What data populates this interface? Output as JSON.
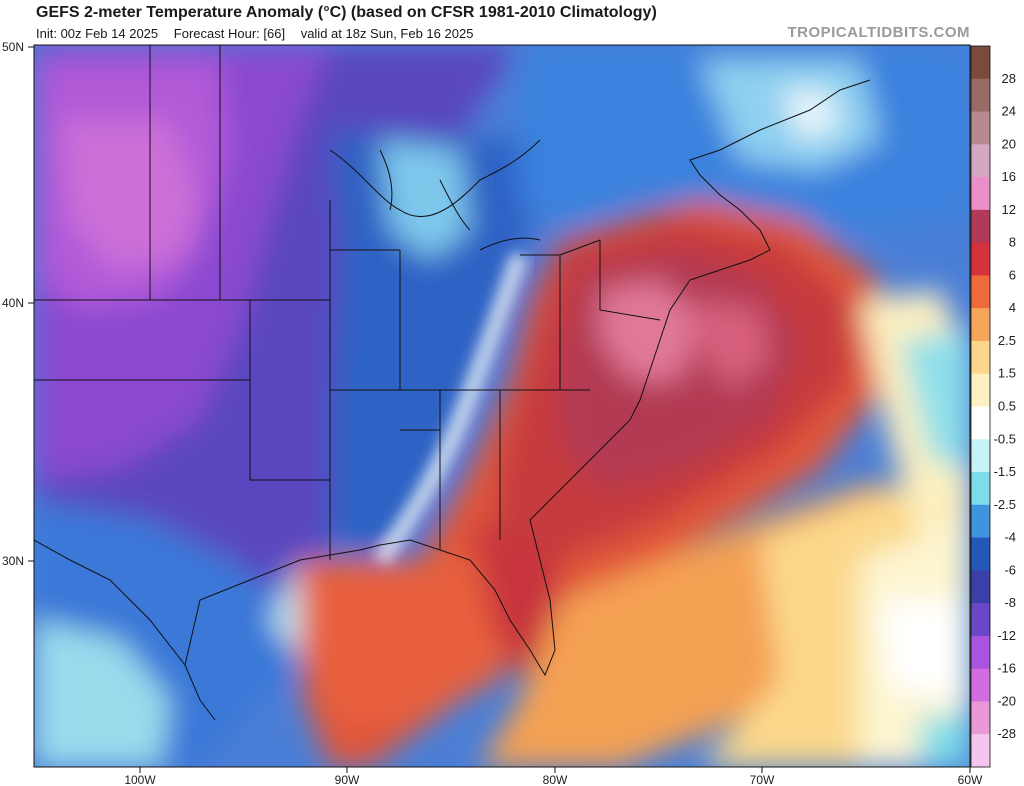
{
  "header": {
    "title": "GEFS 2-meter Temperature Anomaly (°C) (based on CFSR 1981-2010 Climatology)",
    "init": "Init: 00z Feb 14 2025",
    "forecast_hour": "Forecast Hour: [66]",
    "valid": "valid at 18z Sun, Feb 16 2025"
  },
  "brand": "TROPICALTIDBITS.COM",
  "map": {
    "lat_labels": [
      "50N",
      "40N",
      "30N"
    ],
    "lon_labels": [
      "100W",
      "90W",
      "80W",
      "70W",
      "60W"
    ]
  },
  "colorbar": {
    "labels": [
      "28",
      "24",
      "20",
      "16",
      "12",
      "8",
      "6",
      "4",
      "2.5",
      "1.5",
      "0.5",
      "-0.5",
      "-1.5",
      "-2.5",
      "-4",
      "-6",
      "-8",
      "-12",
      "-16",
      "-20",
      "-28"
    ],
    "colors": [
      "#7a4a3c",
      "#9a6a66",
      "#b78a92",
      "#d4a8c2",
      "#ea8fc8",
      "#b03a58",
      "#d4333e",
      "#ec6a3c",
      "#f5a65a",
      "#fbd68c",
      "#fdf1c4",
      "#ffffff",
      "#c8f3f6",
      "#7edce9",
      "#3f94e0",
      "#2458b8",
      "#3a40a8",
      "#6a46c8",
      "#a854e0",
      "#d26ce0",
      "#e998d8",
      "#f4c6ee"
    ]
  }
}
